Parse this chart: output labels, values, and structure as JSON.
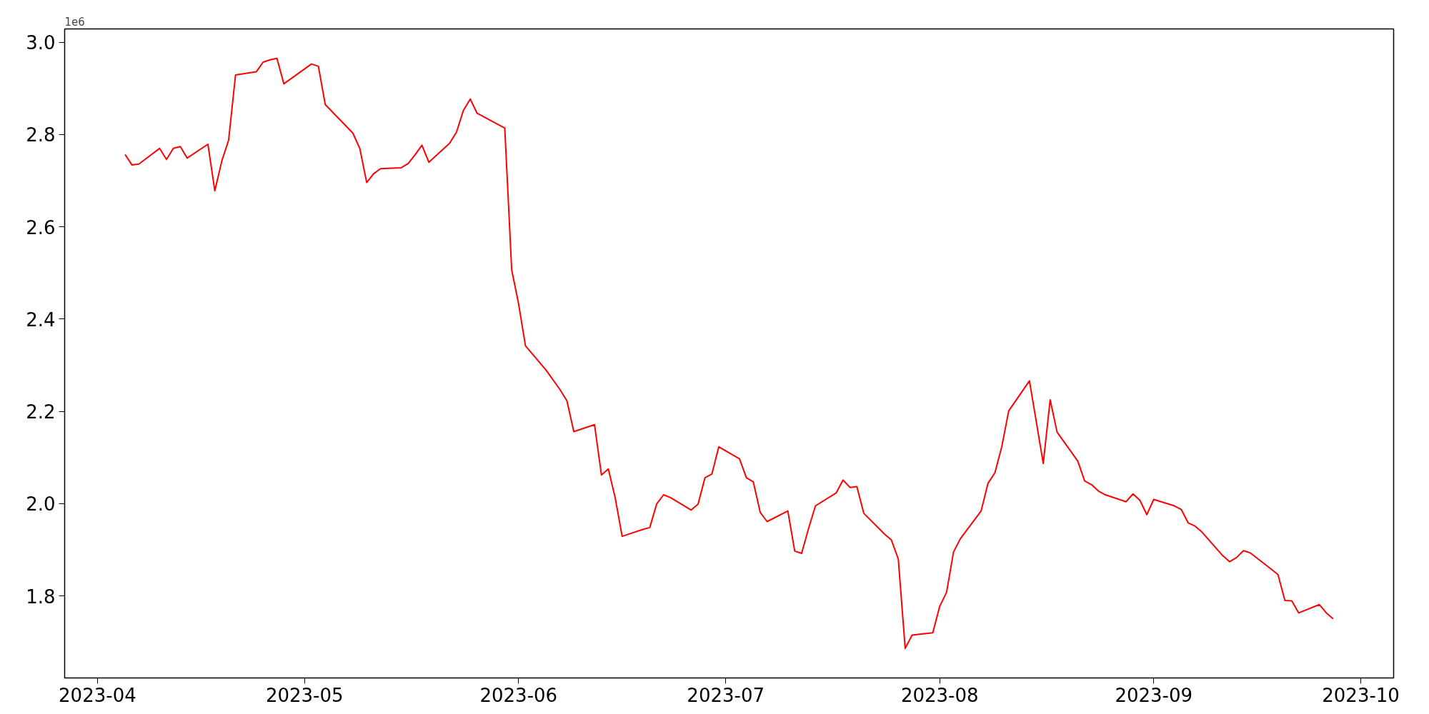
{
  "chart_data": {
    "type": "line",
    "xlim": [
      "2023-03-27T06:00",
      "2023-10-05T18:00"
    ],
    "ylim": [
      1.622,
      3.029
    ],
    "xticks": [
      {
        "value": "2023-04-01",
        "label": "2023-04"
      },
      {
        "value": "2023-05-01",
        "label": "2023-05"
      },
      {
        "value": "2023-06-01",
        "label": "2023-06"
      },
      {
        "value": "2023-07-01",
        "label": "2023-07"
      },
      {
        "value": "2023-08-01",
        "label": "2023-08"
      },
      {
        "value": "2023-09-01",
        "label": "2023-09"
      },
      {
        "value": "2023-10-01",
        "label": "2023-10"
      }
    ],
    "yticks": [
      1.8,
      {
        "value": 2.0,
        "label": "2.0"
      },
      2.2,
      2.4,
      2.6,
      2.8,
      {
        "value": 3.0,
        "label": "3.0"
      }
    ],
    "annotations": [
      "1e6"
    ],
    "grid": false,
    "marker": "none",
    "line_style": "solid",
    "x": [
      "2023-04-05",
      "2023-04-06",
      "2023-04-07",
      "2023-04-10",
      "2023-04-11",
      "2023-04-12",
      "2023-04-13",
      "2023-04-14",
      "2023-04-17",
      "2023-04-18",
      "2023-04-19",
      "2023-04-20",
      "2023-04-21",
      "2023-04-24",
      "2023-04-25",
      "2023-04-26",
      "2023-04-27",
      "2023-04-28",
      "2023-05-02",
      "2023-05-03",
      "2023-05-04",
      "2023-05-08",
      "2023-05-09",
      "2023-05-10",
      "2023-05-11",
      "2023-05-12",
      "2023-05-15",
      "2023-05-16",
      "2023-05-17",
      "2023-05-18",
      "2023-05-19",
      "2023-05-22",
      "2023-05-23",
      "2023-05-24",
      "2023-05-25",
      "2023-05-26",
      "2023-05-30",
      "2023-05-31",
      "2023-06-01",
      "2023-06-02",
      "2023-06-05",
      "2023-06-07",
      "2023-06-08",
      "2023-06-09",
      "2023-06-12",
      "2023-06-13",
      "2023-06-14",
      "2023-06-15",
      "2023-06-16",
      "2023-06-19",
      "2023-06-20",
      "2023-06-21",
      "2023-06-22",
      "2023-06-23",
      "2023-06-26",
      "2023-06-27",
      "2023-06-28",
      "2023-06-29",
      "2023-06-30",
      "2023-07-03",
      "2023-07-04",
      "2023-07-05",
      "2023-07-06",
      "2023-07-07",
      "2023-07-10",
      "2023-07-11",
      "2023-07-12",
      "2023-07-13",
      "2023-07-14",
      "2023-07-17",
      "2023-07-18",
      "2023-07-19",
      "2023-07-20",
      "2023-07-21",
      "2023-07-24",
      "2023-07-25",
      "2023-07-26",
      "2023-07-27",
      "2023-07-28",
      "2023-07-31",
      "2023-08-01",
      "2023-08-02",
      "2023-08-03",
      "2023-08-04",
      "2023-08-07",
      "2023-08-08",
      "2023-08-09",
      "2023-08-10",
      "2023-08-11",
      "2023-08-14",
      "2023-08-16",
      "2023-08-17",
      "2023-08-18",
      "2023-08-21",
      "2023-08-22",
      "2023-08-23",
      "2023-08-24",
      "2023-08-25",
      "2023-08-28",
      "2023-08-29",
      "2023-08-30",
      "2023-08-31",
      "2023-09-01",
      "2023-09-04",
      "2023-09-05",
      "2023-09-06",
      "2023-09-07",
      "2023-09-08",
      "2023-09-11",
      "2023-09-12",
      "2023-09-13",
      "2023-09-14",
      "2023-09-15",
      "2023-09-18",
      "2023-09-19",
      "2023-09-20",
      "2023-09-21",
      "2023-09-22",
      "2023-09-25",
      "2023-09-26",
      "2023-09-27"
    ],
    "series": [
      {
        "color": "#ff0000",
        "values": [
          2.757,
          2.734,
          2.736,
          2.77,
          2.746,
          2.77,
          2.774,
          2.749,
          2.779,
          2.678,
          2.742,
          2.788,
          2.929,
          2.936,
          2.957,
          2.962,
          2.965,
          2.91,
          2.953,
          2.948,
          2.865,
          2.803,
          2.77,
          2.696,
          2.715,
          2.726,
          2.728,
          2.737,
          2.756,
          2.777,
          2.74,
          2.781,
          2.805,
          2.852,
          2.877,
          2.846,
          2.814,
          2.507,
          2.433,
          2.342,
          2.289,
          2.247,
          2.223,
          2.156,
          2.171,
          2.062,
          2.075,
          2.012,
          1.929,
          1.944,
          1.948,
          1.999,
          2.019,
          2.013,
          1.986,
          1.999,
          2.056,
          2.064,
          2.123,
          2.097,
          2.056,
          2.047,
          1.981,
          1.961,
          1.984,
          1.897,
          1.892,
          1.946,
          1.995,
          2.023,
          2.051,
          2.035,
          2.037,
          1.979,
          1.934,
          1.921,
          1.88,
          1.686,
          1.715,
          1.72,
          1.777,
          1.808,
          1.895,
          1.924,
          1.984,
          2.044,
          2.067,
          2.124,
          2.201,
          2.266,
          2.087,
          2.225,
          2.155,
          2.092,
          2.049,
          2.041,
          2.027,
          2.019,
          2.004,
          2.021,
          2.007,
          1.976,
          2.009,
          1.995,
          1.987,
          1.958,
          1.951,
          1.938,
          1.887,
          1.874,
          1.883,
          1.898,
          1.893,
          1.858,
          1.846,
          1.79,
          1.789,
          1.763,
          1.781,
          1.763,
          1.75
        ]
      }
    ]
  }
}
